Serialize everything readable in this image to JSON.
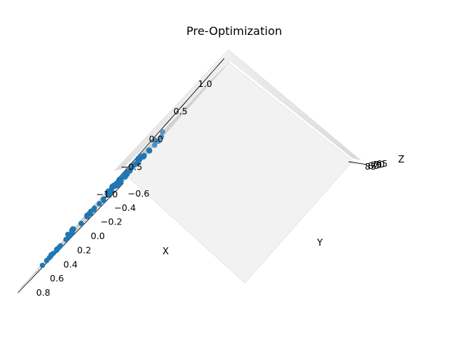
{
  "chart_data": {
    "type": "scatter",
    "dimensions": 3,
    "title": "Pre-Optimization",
    "xlabel": "X",
    "ylabel": "Y",
    "zlabel": "Z",
    "x_ticks": [
      "1.0",
      "0.5",
      "0.0",
      "−0.5",
      "−1.0"
    ],
    "y_ticks": [
      "0.8",
      "0.6",
      "0.4",
      "0.2",
      "0.0",
      "−0.2",
      "−0.4",
      "−0.6"
    ],
    "z_ticks": [
      "85",
      "80",
      "75",
      "70",
      "65"
    ],
    "xlim": [
      -1.1,
      1.1
    ],
    "ylim": [
      -0.65,
      0.9
    ],
    "grid": true,
    "marker_color": "#1f77b4",
    "series": [
      {
        "points": [
          {
            "x": 0.12,
            "y": 0.93,
            "z": 72
          },
          {
            "x": 0.02,
            "y": 0.93,
            "z": 72
          },
          {
            "x": 0.03,
            "y": 0.88,
            "z": 72
          },
          {
            "x": -0.14,
            "y": 0.73,
            "z": 72
          },
          {
            "x": 0.89,
            "y": 0.28,
            "z": 72
          },
          {
            "x": 0.99,
            "y": 0.24,
            "z": 72
          },
          {
            "x": 0.68,
            "y": 0.34,
            "z": 72
          },
          {
            "x": 0.66,
            "y": 0.36,
            "z": 72
          },
          {
            "x": 0.5,
            "y": 0.25,
            "z": 72
          },
          {
            "x": 0.33,
            "y": 0.48,
            "z": 72
          },
          {
            "x": 0.36,
            "y": 0.51,
            "z": 72
          },
          {
            "x": 0.44,
            "y": 0.58,
            "z": 72
          },
          {
            "x": 0.42,
            "y": 0.57,
            "z": 72
          },
          {
            "x": 0.33,
            "y": 0.56,
            "z": 72
          },
          {
            "x": 0.36,
            "y": 0.42,
            "z": 72
          },
          {
            "x": 0.23,
            "y": 0.42,
            "z": 72
          },
          {
            "x": 0.19,
            "y": 0.35,
            "z": 72
          },
          {
            "x": 0.24,
            "y": 0.33,
            "z": 72
          },
          {
            "x": 0.23,
            "y": 0.29,
            "z": 72
          },
          {
            "x": 0.28,
            "y": 0.26,
            "z": 72
          },
          {
            "x": 0.38,
            "y": 0.14,
            "z": 72
          },
          {
            "x": 0.33,
            "y": 0.12,
            "z": 72
          },
          {
            "x": 0.2,
            "y": 0.22,
            "z": 72
          },
          {
            "x": 0.13,
            "y": 0.24,
            "z": 72
          },
          {
            "x": 0.05,
            "y": 0.23,
            "z": 72
          },
          {
            "x": 0.03,
            "y": 0.21,
            "z": 72
          },
          {
            "x": 0.13,
            "y": 0.14,
            "z": 72
          },
          {
            "x": 0.14,
            "y": 0.07,
            "z": 72
          },
          {
            "x": 0.0,
            "y": 0.04,
            "z": 72
          },
          {
            "x": 0.09,
            "y": 0.0,
            "z": 72
          },
          {
            "x": 0.21,
            "y": 0.02,
            "z": 72
          },
          {
            "x": 0.22,
            "y": 0.0,
            "z": 72
          },
          {
            "x": 0.15,
            "y": -0.03,
            "z": 72
          },
          {
            "x": 0.08,
            "y": -0.08,
            "z": 72
          },
          {
            "x": 0.03,
            "y": -0.06,
            "z": 72
          },
          {
            "x": -0.07,
            "y": -0.04,
            "z": 72
          },
          {
            "x": -0.1,
            "y": -0.07,
            "z": 72
          },
          {
            "x": -0.14,
            "y": -0.04,
            "z": 72
          },
          {
            "x": -0.19,
            "y": 0.02,
            "z": 72
          },
          {
            "x": -0.05,
            "y": 0.15,
            "z": 72
          },
          {
            "x": -0.08,
            "y": 0.17,
            "z": 72
          },
          {
            "x": -0.28,
            "y": 0.08,
            "z": 72
          },
          {
            "x": -0.33,
            "y": 0.09,
            "z": 72
          },
          {
            "x": -0.23,
            "y": 0.16,
            "z": 72
          },
          {
            "x": -0.34,
            "y": 0.15,
            "z": 72
          },
          {
            "x": -0.45,
            "y": 0.13,
            "z": 72
          },
          {
            "x": -0.48,
            "y": 0.19,
            "z": 72
          },
          {
            "x": -0.55,
            "y": 0.19,
            "z": 72
          },
          {
            "x": -0.64,
            "y": 0.26,
            "z": 72
          },
          {
            "x": -0.6,
            "y": 0.29,
            "z": 72
          },
          {
            "x": -0.71,
            "y": 0.35,
            "z": 72
          },
          {
            "x": -0.73,
            "y": 0.38,
            "z": 72
          },
          {
            "x": -0.87,
            "y": 0.42,
            "z": 72
          },
          {
            "x": -0.93,
            "y": 0.41,
            "z": 72
          },
          {
            "x": -0.8,
            "y": 0.45,
            "z": 72
          },
          {
            "x": -0.85,
            "y": 0.52,
            "z": 72
          },
          {
            "x": -0.78,
            "y": 0.52,
            "z": 72
          },
          {
            "x": -0.9,
            "y": 0.54,
            "z": 72
          },
          {
            "x": -0.86,
            "y": 0.55,
            "z": 72
          },
          {
            "x": -0.84,
            "y": 0.56,
            "z": 72
          },
          {
            "x": -0.9,
            "y": 0.58,
            "z": 72
          },
          {
            "x": -1.0,
            "y": 0.57,
            "z": 72
          },
          {
            "x": -0.73,
            "y": 0.55,
            "z": 72
          },
          {
            "x": -0.66,
            "y": 0.47,
            "z": 72
          },
          {
            "x": -0.64,
            "y": 0.7,
            "z": 72
          },
          {
            "x": -0.4,
            "y": 0.56,
            "z": 72
          },
          {
            "x": -0.28,
            "y": 0.41,
            "z": 72
          },
          {
            "x": -0.33,
            "y": 0.36,
            "z": 72
          },
          {
            "x": -0.26,
            "y": 0.34,
            "z": 72
          },
          {
            "x": -0.39,
            "y": 0.35,
            "z": 72
          },
          {
            "x": -0.44,
            "y": 0.32,
            "z": 72
          },
          {
            "x": -0.58,
            "y": 0.44,
            "z": 72
          },
          {
            "x": -0.09,
            "y": 0.26,
            "z": 72
          },
          {
            "x": 0.08,
            "y": 0.33,
            "z": 72
          },
          {
            "x": -0.02,
            "y": 0.32,
            "z": 72
          },
          {
            "x": -0.15,
            "y": 0.47,
            "z": 72
          },
          {
            "x": -0.16,
            "y": 0.52,
            "z": 72
          },
          {
            "x": -0.54,
            "y": -0.08,
            "z": 72
          },
          {
            "x": -0.56,
            "y": -0.09,
            "z": 72
          },
          {
            "x": -0.62,
            "y": -0.13,
            "z": 72
          },
          {
            "x": -0.56,
            "y": -0.21,
            "z": 72
          },
          {
            "x": -0.62,
            "y": -0.29,
            "z": 72
          },
          {
            "x": -0.72,
            "y": -0.24,
            "z": 72
          },
          {
            "x": -0.67,
            "y": -0.09,
            "z": 72
          },
          {
            "x": -0.38,
            "y": -0.21,
            "z": 72
          },
          {
            "x": -0.32,
            "y": -0.35,
            "z": 72
          },
          {
            "x": -0.28,
            "y": -0.4,
            "z": 72
          },
          {
            "x": -0.21,
            "y": -0.51,
            "z": 72
          },
          {
            "x": -0.19,
            "y": -0.55,
            "z": 72
          },
          {
            "x": -0.3,
            "y": -0.5,
            "z": 72
          },
          {
            "x": -0.2,
            "y": -0.42,
            "z": 72
          },
          {
            "x": -0.16,
            "y": -0.32,
            "z": 72
          },
          {
            "x": -0.07,
            "y": -0.33,
            "z": 72
          },
          {
            "x": -0.05,
            "y": -0.24,
            "z": 72
          },
          {
            "x": 0.04,
            "y": -0.43,
            "z": 72
          },
          {
            "x": 0.07,
            "y": -0.22,
            "z": 72
          },
          {
            "x": 0.02,
            "y": -0.16,
            "z": 72
          },
          {
            "x": -0.45,
            "y": -0.19,
            "z": 72
          },
          {
            "x": -0.3,
            "y": -0.17,
            "z": 72
          },
          {
            "x": -0.36,
            "y": -0.09,
            "z": 72
          },
          {
            "x": -0.48,
            "y": -0.27,
            "z": 72
          },
          {
            "x": -0.23,
            "y": -0.16,
            "z": 72
          },
          {
            "x": -0.05,
            "y": 0.02,
            "z": 72
          },
          {
            "x": -0.32,
            "y": -0.04,
            "z": 72
          }
        ]
      }
    ]
  }
}
